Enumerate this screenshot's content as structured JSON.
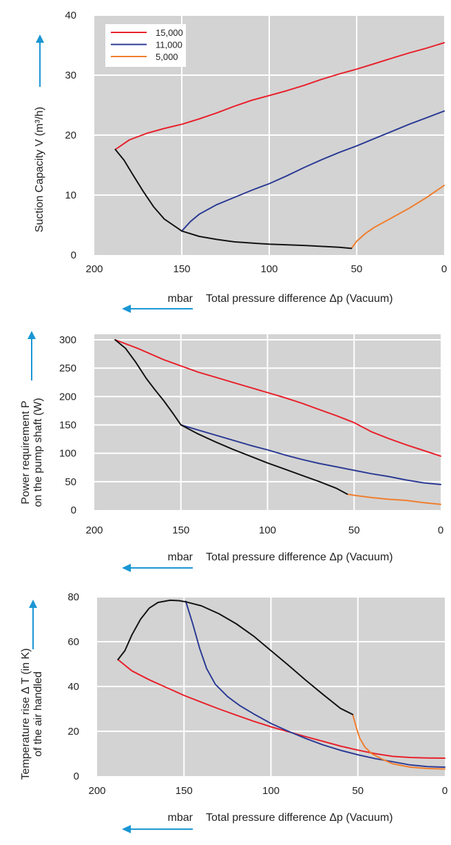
{
  "colors": {
    "plot_bg": "#d3d3d3",
    "grid": "#ffffff",
    "arrow": "#1a96d4",
    "series": {
      "15,000": "#e8202a",
      "11,000": "#2b3a94",
      "5,000": "#f07d2c",
      "envelope": "#111111"
    }
  },
  "chart_data": [
    {
      "type": "line",
      "title": "",
      "ylabel": "Suction Capacity V (m³/h)",
      "xlabel": "Total pressure difference Δp (Vacuum)",
      "xunit": "mbar",
      "xlim": [
        200,
        0
      ],
      "ylim": [
        0,
        40
      ],
      "xticks": [
        "200",
        "150",
        "100",
        "50",
        "0"
      ],
      "yticks": [
        "0",
        "10",
        "20",
        "30",
        "40"
      ],
      "grid": true,
      "legend": {
        "position": "top-left",
        "entries": [
          "15,000",
          "11,000",
          "5,000"
        ]
      },
      "series": [
        {
          "name": "15,000",
          "points": [
            [
              188,
              17.6
            ],
            [
              180,
              19.2
            ],
            [
              170,
              20.3
            ],
            [
              160,
              21.1
            ],
            [
              150,
              21.8
            ],
            [
              140,
              22.7
            ],
            [
              130,
              23.7
            ],
            [
              120,
              24.8
            ],
            [
              110,
              25.8
            ],
            [
              100,
              26.6
            ],
            [
              90,
              27.4
            ],
            [
              80,
              28.3
            ],
            [
              70,
              29.3
            ],
            [
              60,
              30.2
            ],
            [
              50,
              31.0
            ],
            [
              40,
              31.9
            ],
            [
              30,
              32.8
            ],
            [
              20,
              33.7
            ],
            [
              10,
              34.5
            ],
            [
              0,
              35.4
            ]
          ]
        },
        {
          "name": "11,000",
          "points": [
            [
              150,
              4.0
            ],
            [
              145,
              5.6
            ],
            [
              140,
              6.8
            ],
            [
              130,
              8.4
            ],
            [
              120,
              9.6
            ],
            [
              110,
              10.8
            ],
            [
              100,
              11.9
            ],
            [
              90,
              13.2
            ],
            [
              80,
              14.6
            ],
            [
              70,
              15.9
            ],
            [
              60,
              17.1
            ],
            [
              50,
              18.2
            ],
            [
              40,
              19.4
            ],
            [
              30,
              20.6
            ],
            [
              20,
              21.8
            ],
            [
              10,
              22.9
            ],
            [
              0,
              24.0
            ]
          ]
        },
        {
          "name": "5,000",
          "points": [
            [
              53,
              1.1
            ],
            [
              50,
              2.3
            ],
            [
              45,
              3.6
            ],
            [
              40,
              4.6
            ],
            [
              30,
              6.2
            ],
            [
              20,
              7.8
            ],
            [
              10,
              9.6
            ],
            [
              0,
              11.6
            ]
          ]
        },
        {
          "name": "envelope",
          "points": [
            [
              188,
              17.6
            ],
            [
              183,
              15.8
            ],
            [
              178,
              13.4
            ],
            [
              172,
              10.6
            ],
            [
              166,
              8.0
            ],
            [
              160,
              6.0
            ],
            [
              154,
              4.8
            ],
            [
              150,
              4.0
            ],
            [
              140,
              3.1
            ],
            [
              130,
              2.6
            ],
            [
              120,
              2.2
            ],
            [
              110,
              2.0
            ],
            [
              100,
              1.8
            ],
            [
              80,
              1.6
            ],
            [
              60,
              1.3
            ],
            [
              53,
              1.1
            ]
          ]
        }
      ]
    },
    {
      "type": "line",
      "title": "",
      "ylabel": "Power requirement P on the pump shaft (W)",
      "ylabel_lines": [
        "Power requirement P",
        "on the pump shaft (W)"
      ],
      "xlabel": "Total pressure difference Δp (Vacuum)",
      "xunit": "mbar",
      "xlim": [
        200,
        0
      ],
      "ylim": [
        0,
        300
      ],
      "xticks": [
        "200",
        "150",
        "100",
        "50",
        "0"
      ],
      "yticks": [
        "0",
        "50",
        "100",
        "150",
        "200",
        "250",
        "300"
      ],
      "grid": true,
      "series": [
        {
          "name": "15,000",
          "points": [
            [
              188,
              300
            ],
            [
              175,
              285
            ],
            [
              160,
              265
            ],
            [
              150,
              254
            ],
            [
              140,
              243
            ],
            [
              130,
              234
            ],
            [
              120,
              225
            ],
            [
              110,
              216
            ],
            [
              100,
              207
            ],
            [
              90,
              198
            ],
            [
              80,
              188
            ],
            [
              70,
              177
            ],
            [
              60,
              166
            ],
            [
              50,
              154
            ],
            [
              40,
              138
            ],
            [
              30,
              126
            ],
            [
              20,
              115
            ],
            [
              10,
              105
            ],
            [
              0,
              95
            ]
          ]
        },
        {
          "name": "11,000",
          "points": [
            [
              150,
              150
            ],
            [
              140,
              141
            ],
            [
              130,
              132
            ],
            [
              120,
              123
            ],
            [
              110,
              114
            ],
            [
              100,
              106
            ],
            [
              90,
              97
            ],
            [
              80,
              89
            ],
            [
              70,
              82
            ],
            [
              60,
              76
            ],
            [
              50,
              70
            ],
            [
              40,
              64
            ],
            [
              30,
              59
            ],
            [
              20,
              53
            ],
            [
              10,
              48
            ],
            [
              0,
              45
            ]
          ]
        },
        {
          "name": "5,000",
          "points": [
            [
              54,
              28
            ],
            [
              50,
              26
            ],
            [
              40,
              22
            ],
            [
              30,
              19
            ],
            [
              20,
              17
            ],
            [
              10,
              13
            ],
            [
              0,
              10
            ]
          ]
        },
        {
          "name": "envelope",
          "points": [
            [
              188,
              300
            ],
            [
              182,
              285
            ],
            [
              176,
              260
            ],
            [
              170,
              232
            ],
            [
              165,
              212
            ],
            [
              160,
              193
            ],
            [
              155,
              172
            ],
            [
              150,
              150
            ],
            [
              140,
              134
            ],
            [
              130,
              120
            ],
            [
              120,
              107
            ],
            [
              110,
              95
            ],
            [
              100,
              83
            ],
            [
              90,
              72
            ],
            [
              80,
              61
            ],
            [
              70,
              50
            ],
            [
              60,
              38
            ],
            [
              54,
              28
            ]
          ]
        }
      ]
    },
    {
      "type": "line",
      "title": "",
      "ylabel": "Temperature rise Δ T (in K) of the air handled",
      "ylabel_lines": [
        "Temperature rise Δ T (in K)",
        "of the air handled"
      ],
      "xlabel": "Total pressure difference Δp (Vacuum)",
      "xunit": "mbar",
      "xlim": [
        200,
        0
      ],
      "ylim": [
        0,
        80
      ],
      "xticks": [
        "200",
        "150",
        "100",
        "50",
        "0"
      ],
      "yticks": [
        "0",
        "20",
        "40",
        "60",
        "80"
      ],
      "grid": true,
      "series": [
        {
          "name": "15,000",
          "points": [
            [
              188,
              52
            ],
            [
              180,
              47
            ],
            [
              170,
              43
            ],
            [
              160,
              39.5
            ],
            [
              150,
              36
            ],
            [
              140,
              33
            ],
            [
              130,
              30
            ],
            [
              120,
              27.2
            ],
            [
              110,
              24.5
            ],
            [
              100,
              22
            ],
            [
              90,
              19.8
            ],
            [
              80,
              17.6
            ],
            [
              70,
              15.5
            ],
            [
              60,
              13.4
            ],
            [
              50,
              11.6
            ],
            [
              40,
              10
            ],
            [
              30,
              8.8
            ],
            [
              20,
              8.3
            ],
            [
              10,
              8.1
            ],
            [
              0,
              8.0
            ]
          ]
        },
        {
          "name": "11,000",
          "points": [
            [
              149,
              78
            ],
            [
              145,
              68
            ],
            [
              141,
              57
            ],
            [
              137,
              48
            ],
            [
              132,
              41
            ],
            [
              125,
              35.5
            ],
            [
              118,
              31.5
            ],
            [
              110,
              27.8
            ],
            [
              100,
              23.5
            ],
            [
              90,
              20
            ],
            [
              80,
              16.8
            ],
            [
              70,
              13.9
            ],
            [
              60,
              11.5
            ],
            [
              50,
              9.5
            ],
            [
              40,
              7.8
            ],
            [
              30,
              6.4
            ],
            [
              20,
              5.0
            ],
            [
              10,
              4.2
            ],
            [
              0,
              4.0
            ]
          ]
        },
        {
          "name": "5,000",
          "points": [
            [
              53,
              27.5
            ],
            [
              51,
              22
            ],
            [
              49,
              17
            ],
            [
              46,
              13
            ],
            [
              42,
              10
            ],
            [
              36,
              7.5
            ],
            [
              30,
              5.5
            ],
            [
              20,
              4
            ],
            [
              10,
              3.4
            ],
            [
              0,
              3.2
            ]
          ]
        },
        {
          "name": "envelope",
          "points": [
            [
              188,
              52
            ],
            [
              184,
              56
            ],
            [
              180,
              63
            ],
            [
              175,
              70
            ],
            [
              170,
              75
            ],
            [
              165,
              77.5
            ],
            [
              158,
              78.5
            ],
            [
              153,
              78.3
            ],
            [
              149,
              77.8
            ],
            [
              140,
              76
            ],
            [
              130,
              72.5
            ],
            [
              120,
              68
            ],
            [
              110,
              62.5
            ],
            [
              100,
              56
            ],
            [
              90,
              49.5
            ],
            [
              80,
              42.8
            ],
            [
              70,
              36.4
            ],
            [
              60,
              30.2
            ],
            [
              53,
              27.5
            ]
          ]
        }
      ]
    }
  ]
}
